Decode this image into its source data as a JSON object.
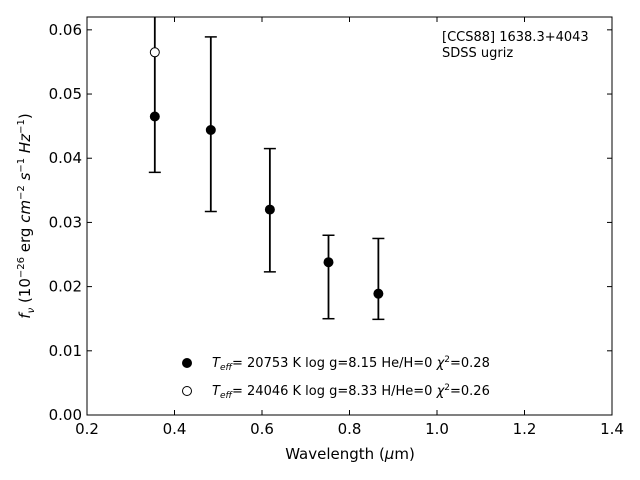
{
  "chart_data": {
    "type": "scatter",
    "title": "",
    "xlabel": "Wavelength (μm)",
    "ylabel": "f_ν (10^−26 erg cm^−2 s^−1 Hz^−1)",
    "xlim": [
      0.2,
      1.4
    ],
    "ylim": [
      0.0,
      0.062
    ],
    "x_ticks": [
      "0.2",
      "0.4",
      "0.6",
      "0.8",
      "1.0",
      "1.2",
      "1.4"
    ],
    "y_ticks": [
      "0.00",
      "0.01",
      "0.02",
      "0.03",
      "0.04",
      "0.05",
      "0.06"
    ],
    "annotation": [
      "[CCS88] 1638.3+4043",
      "SDSS ugriz"
    ],
    "observed": {
      "x": [
        0.355,
        0.483,
        0.618,
        0.752,
        0.866
      ],
      "y": [
        0.0465,
        0.0444,
        0.032,
        0.0238,
        0.0189
      ],
      "yerr_low": [
        0.0087,
        0.0127,
        0.0097,
        0.0088,
        0.004
      ],
      "yerr_high": [
        0.016,
        0.0145,
        0.0095,
        0.0042,
        0.0086
      ]
    },
    "series": [
      {
        "name": "T_eff= 20753 K  log g=8.15  He/H=0  χ²=0.28",
        "marker": "filled",
        "x": [
          0.355,
          0.483,
          0.618,
          0.752,
          0.866
        ],
        "y": [
          0.0465,
          0.0444,
          0.032,
          0.0238,
          0.0189
        ]
      },
      {
        "name": "T_eff= 24046 K  log g=8.33  H/He=0  χ²=0.26",
        "marker": "open",
        "x": [
          0.355
        ],
        "y": [
          0.0565
        ]
      }
    ],
    "legend_placement": "bottom-center",
    "grid": false
  }
}
